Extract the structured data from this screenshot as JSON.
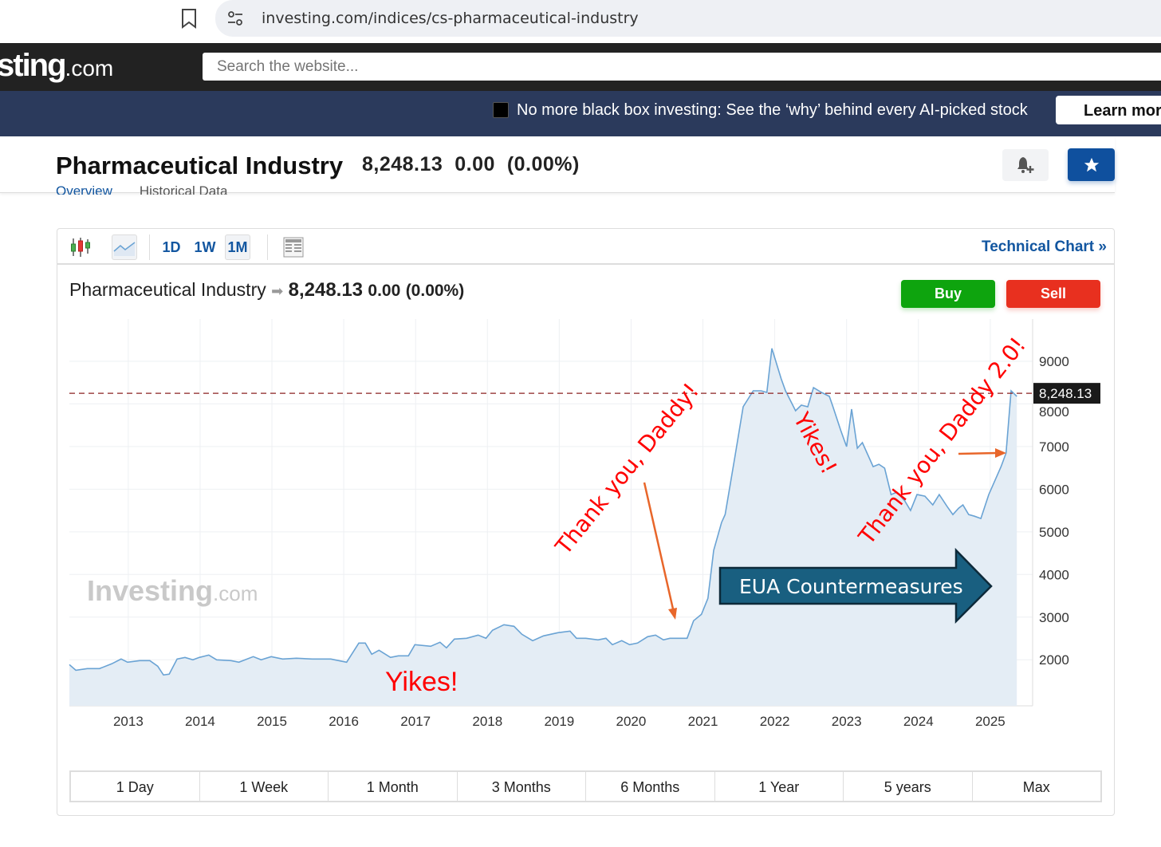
{
  "browser": {
    "url": "investing.com/indices/cs-pharmaceutical-industry"
  },
  "site": {
    "logo_main": "sting",
    "logo_suffix": ".com",
    "search_placeholder": "Search the website..."
  },
  "promo": {
    "text": "No more black box investing: See the ‘why’ behind every AI-picked stock",
    "button": "Learn more"
  },
  "header": {
    "title": "Pharmaceutical Industry",
    "price": "8,248.13",
    "change": "0.00",
    "change_pct": "(0.00%)",
    "tabs": [
      "Overview",
      "Historical Data"
    ]
  },
  "toolbar": {
    "intervals": [
      "1D",
      "1W",
      "1M"
    ],
    "selected": "1M",
    "technical_chart": "Technical Chart",
    "chevron": "»"
  },
  "chart_header": {
    "name": "Pharmaceutical Industry",
    "price": "8,248.13",
    "change": "0.00",
    "change_pct": "(0.00%)",
    "buy": "Buy",
    "sell": "Sell"
  },
  "ranges": [
    "1 Day",
    "1 Week",
    "1 Month",
    "3 Months",
    "6 Months",
    "1 Year",
    "5 years",
    "Max"
  ],
  "colors": {
    "line": "#6aa3d4",
    "fill": "#e4edf5",
    "accent": "#1256a0",
    "buy": "#0ea40e",
    "sell": "#e8301f",
    "annotation": "#ff0000",
    "arrow": "#e8662a",
    "eua": "#195f80"
  },
  "chart_data": {
    "type": "area",
    "title": "Pharmaceutical Industry",
    "watermark": "Investing.com",
    "xlabel": "",
    "ylabel": "",
    "xlim": [
      2012.18,
      2025.59
    ],
    "ylim": [
      920,
      9990
    ],
    "x_ticks": [
      2013,
      2014,
      2015,
      2016,
      2017,
      2018,
      2019,
      2020,
      2021,
      2022,
      2023,
      2024,
      2025
    ],
    "y_ticks": [
      2000,
      3000,
      4000,
      5000,
      6000,
      7000,
      8000,
      9000
    ],
    "grid": true,
    "current_value": 8248.13,
    "current_label": "8,248.13",
    "series": [
      {
        "name": "Pharmaceutical Industry",
        "x": [
          2012.18,
          2012.27,
          2012.43,
          2012.6,
          2012.77,
          2012.9,
          2012.99,
          2013.16,
          2013.3,
          2013.41,
          2013.49,
          2013.57,
          2013.68,
          2013.79,
          2013.9,
          2013.99,
          2014.12,
          2014.23,
          2014.43,
          2014.54,
          2014.74,
          2014.85,
          2014.99,
          2015.15,
          2015.34,
          2015.56,
          2015.82,
          2016.04,
          2016.21,
          2016.3,
          2016.39,
          2016.49,
          2016.65,
          2016.76,
          2016.9,
          2016.99,
          2017.21,
          2017.34,
          2017.43,
          2017.54,
          2017.71,
          2017.87,
          2017.98,
          2018.07,
          2018.23,
          2018.37,
          2018.48,
          2018.63,
          2018.78,
          2018.98,
          2019.15,
          2019.24,
          2019.37,
          2019.54,
          2019.65,
          2019.74,
          2019.87,
          2019.98,
          2020.09,
          2020.23,
          2020.34,
          2020.45,
          2020.54,
          2020.78,
          2020.87,
          2020.98,
          2021.07,
          2021.15,
          2021.26,
          2021.31,
          2021.45,
          2021.56,
          2021.7,
          2021.81,
          2021.89,
          2021.96,
          2022.09,
          2022.15,
          2022.29,
          2022.37,
          2022.46,
          2022.54,
          2022.65,
          2022.76,
          2022.81,
          2022.92,
          2023.0,
          2023.07,
          2023.15,
          2023.22,
          2023.37,
          2023.45,
          2023.53,
          2023.62,
          2023.7,
          2023.81,
          2023.89,
          2023.98,
          2024.09,
          2024.2,
          2024.29,
          2024.4,
          2024.48,
          2024.56,
          2024.62,
          2024.7,
          2024.78,
          2024.87,
          2024.98,
          2025.15,
          2025.22,
          2025.29,
          2025.37
        ],
        "y": [
          1886,
          1755,
          1793,
          1793,
          1905,
          2017,
          1943,
          1980,
          1980,
          1849,
          1643,
          1662,
          2017,
          2055,
          1999,
          2055,
          2111,
          1999,
          1980,
          1943,
          2074,
          1999,
          2074,
          2017,
          2036,
          2017,
          2017,
          1943,
          2392,
          2392,
          2130,
          2223,
          2055,
          2092,
          2092,
          2354,
          2317,
          2411,
          2280,
          2485,
          2504,
          2579,
          2504,
          2691,
          2822,
          2785,
          2598,
          2448,
          2560,
          2635,
          2673,
          2504,
          2504,
          2467,
          2504,
          2354,
          2448,
          2354,
          2392,
          2542,
          2579,
          2467,
          2504,
          2504,
          2916,
          3066,
          3440,
          4563,
          5219,
          5406,
          6810,
          7933,
          8307,
          8307,
          8270,
          9300,
          8588,
          8307,
          7839,
          7970,
          7933,
          8382,
          8270,
          8176,
          7933,
          7371,
          6997,
          7877,
          6960,
          7091,
          6529,
          6585,
          6492,
          5874,
          5930,
          5724,
          5499,
          5874,
          5836,
          5630,
          5874,
          5593,
          5405,
          5555,
          5630,
          5405,
          5368,
          5312,
          5874,
          6529,
          6847,
          8307,
          8176
        ]
      }
    ],
    "annotations": [
      "Thank you, Daddy!",
      "Yikes!",
      "Thank you, Daddy 2.0!",
      "Yikes!",
      "EUA Countermeasures"
    ]
  }
}
